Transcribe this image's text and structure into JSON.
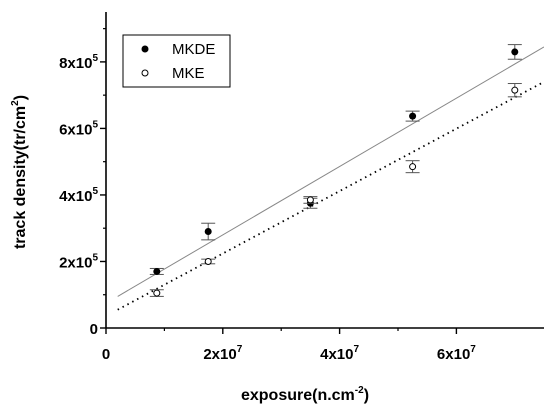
{
  "chart_data": {
    "type": "scatter",
    "xlabel": {
      "base": "exposure(n.cm",
      "sup": "-2",
      "tail": ")"
    },
    "ylabel": {
      "base": "track density(tr/cm",
      "sup": "2",
      "tail": ")"
    },
    "xlim": [
      0,
      75000000
    ],
    "ylim": [
      0,
      950000
    ],
    "x_ticks": [
      {
        "value": 0,
        "mant": "0",
        "exp": ""
      },
      {
        "value": 20000000,
        "mant": "2x10",
        "exp": "7"
      },
      {
        "value": 40000000,
        "mant": "4x10",
        "exp": "7"
      },
      {
        "value": 60000000,
        "mant": "6x10",
        "exp": "7"
      }
    ],
    "y_ticks": [
      {
        "value": 0,
        "mant": "0",
        "exp": ""
      },
      {
        "value": 200000,
        "mant": "2x10",
        "exp": "5"
      },
      {
        "value": 400000,
        "mant": "4x10",
        "exp": "5"
      },
      {
        "value": 600000,
        "mant": "6x10",
        "exp": "5"
      },
      {
        "value": 800000,
        "mant": "8x10",
        "exp": "5"
      }
    ],
    "legend_position": "top-left",
    "series": [
      {
        "name": "MKDE",
        "marker": "filled-circle",
        "color": "#000000",
        "x": [
          8700000,
          17500000,
          35000000,
          52500000,
          70000000
        ],
        "y": [
          170000,
          290000,
          375000,
          637000,
          830000
        ],
        "err": [
          9000,
          25000,
          15000,
          15000,
          22000
        ],
        "fit": {
          "style": "solid",
          "color": "#888888",
          "x": [
            2000000,
            75000000
          ],
          "y": [
            95000,
            845000
          ]
        }
      },
      {
        "name": "MKE",
        "marker": "open-circle",
        "color": "#000000",
        "x": [
          8700000,
          17500000,
          35000000,
          52500000,
          70000000
        ],
        "y": [
          105000,
          200000,
          385000,
          485000,
          715000
        ],
        "err": [
          10000,
          7000,
          10000,
          18000,
          20000
        ],
        "fit": {
          "style": "dotted",
          "color": "#000000",
          "x": [
            2000000,
            75000000
          ],
          "y": [
            55000,
            740000
          ]
        }
      }
    ]
  }
}
